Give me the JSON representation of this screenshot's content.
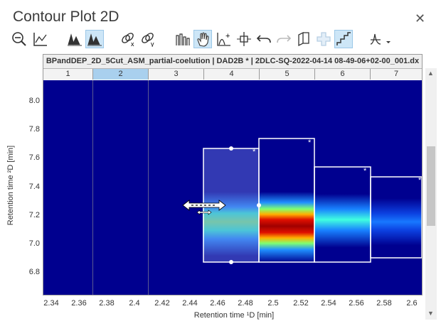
{
  "window": {
    "title": "Contour Plot 2D",
    "close_glyph": "✕"
  },
  "toolbar": {
    "icons": [
      "zoom-out-icon",
      "axis-chart-icon",
      "peaks-icon",
      "peaks-selected-icon",
      "link-x-icon",
      "link-y-icon",
      "spectrum-icon",
      "pan-hand-icon",
      "add-peak-icon",
      "split-icon",
      "undo-icon",
      "redo-icon",
      "book-icon",
      "crosshair-icon",
      "step-icon",
      "signal-dropdown-icon"
    ],
    "active": [
      "peaks-selected-icon",
      "pan-hand-icon",
      "step-icon"
    ]
  },
  "plot": {
    "file_label": "BPandDEP_2D_5Cut_ASM_partial-coelution | DAD2B * | 2DLC-SQ-2022-04-14 08-49-06+02-00_001.dx",
    "cuts": [
      "1",
      "2",
      "3",
      "4",
      "5",
      "6",
      "7"
    ],
    "selected_cut": "2",
    "y_ticks": [
      "8.0",
      "7.8",
      "7.6",
      "7.4",
      "7.2",
      "7.0",
      "6.8"
    ],
    "x_ticks": [
      "2.34",
      "2.36",
      "2.38",
      "2.4",
      "2.42",
      "2.44",
      "2.46",
      "2.48",
      "2.5",
      "2.52",
      "2.54",
      "2.56",
      "2.58",
      "2.6"
    ],
    "y_title": "Retention time ²D [min]",
    "x_title": "Retention time ¹D [min]",
    "box_marker": "*"
  },
  "colors": {
    "background": "#00008f",
    "peak_core": "#c00000",
    "selection": "#5a6ad0"
  }
}
